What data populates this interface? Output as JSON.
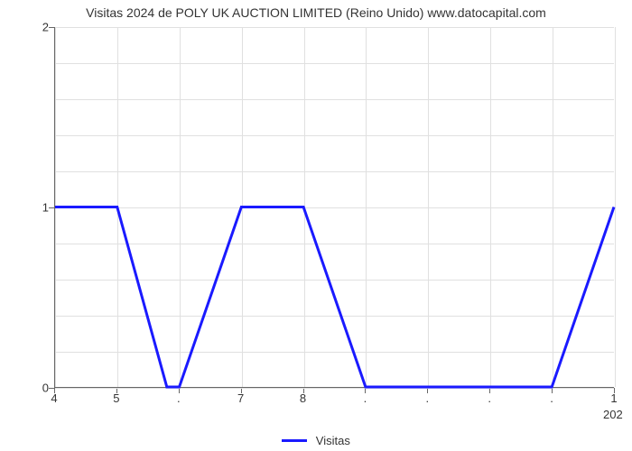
{
  "chart": {
    "type": "line",
    "title": "Visitas 2024 de POLY UK AUCTION LIMITED (Reino Unido) www.datocapital.com",
    "title_fontsize": 14,
    "title_color": "#333333",
    "background_color": "#ffffff",
    "grid_color": "#e0e0e0",
    "axis_color": "#666666",
    "x": {
      "min": 4,
      "max": 13,
      "ticks": [
        {
          "pos": 4,
          "label": "4"
        },
        {
          "pos": 5,
          "label": "5"
        },
        {
          "pos": 6,
          "label": "."
        },
        {
          "pos": 7,
          "label": "7"
        },
        {
          "pos": 8,
          "label": "8"
        },
        {
          "pos": 9,
          "label": "."
        },
        {
          "pos": 10,
          "label": "."
        },
        {
          "pos": 11,
          "label": "."
        },
        {
          "pos": 12,
          "label": "."
        },
        {
          "pos": 13,
          "label": "1"
        }
      ],
      "sublabel": "202",
      "sublabel_pos": 13
    },
    "y": {
      "min": 0,
      "max": 2,
      "major_ticks": [
        0,
        1,
        2
      ],
      "minor_step": 0.2,
      "label_fontsize": 13
    },
    "series": {
      "name": "Visitas",
      "color": "#1a1aff",
      "line_width": 3,
      "points": [
        [
          4.0,
          1.0
        ],
        [
          5.0,
          1.0
        ],
        [
          5.8,
          0.0
        ],
        [
          6.0,
          0.0
        ],
        [
          7.0,
          1.0
        ],
        [
          8.0,
          1.0
        ],
        [
          9.0,
          0.0
        ],
        [
          12.0,
          0.0
        ],
        [
          13.0,
          1.0
        ]
      ]
    },
    "legend": {
      "label": "Visitas",
      "swatch_color": "#1a1aff"
    }
  }
}
